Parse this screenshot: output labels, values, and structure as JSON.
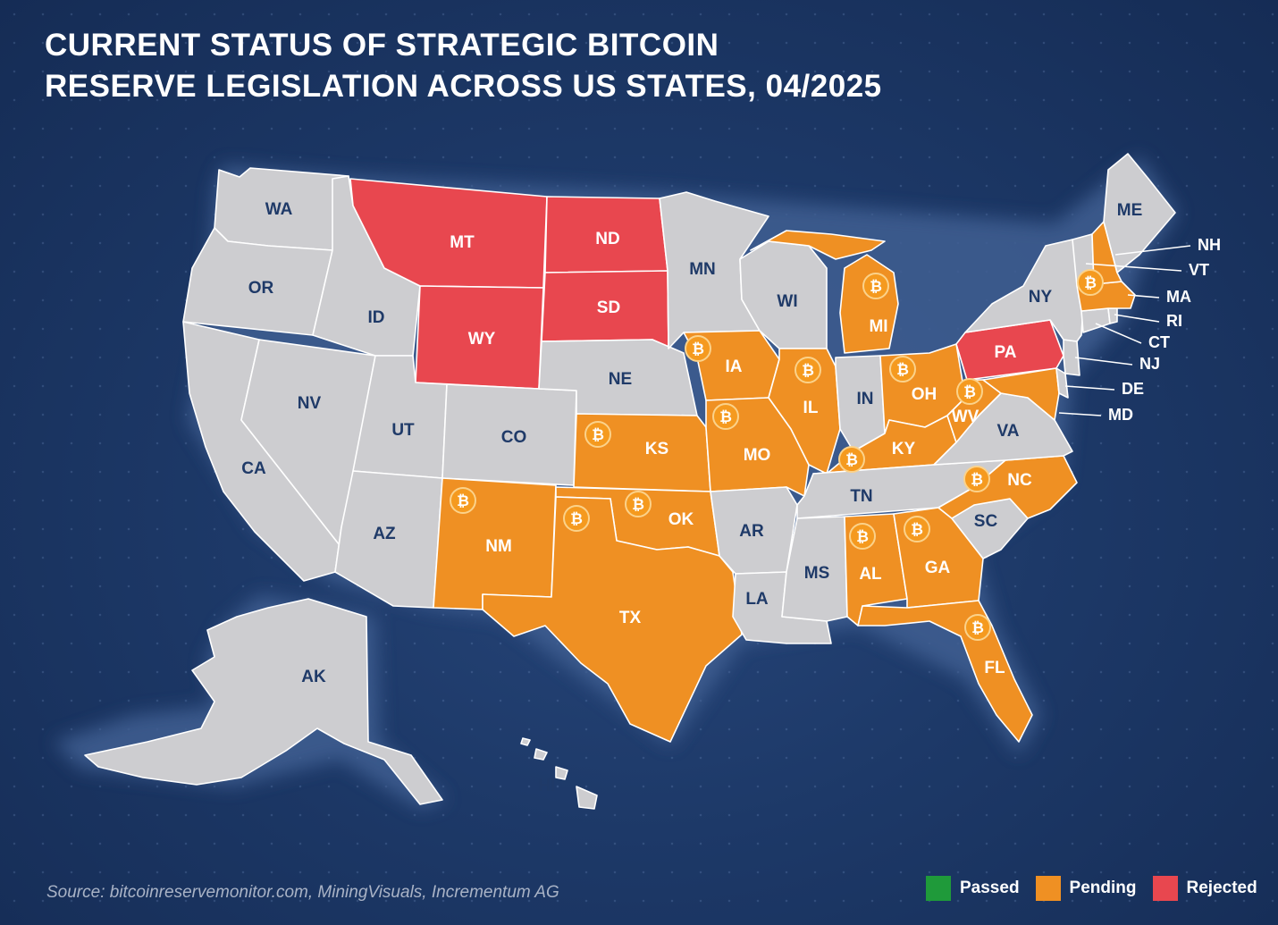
{
  "title": {
    "line1": "CURRENT STATUS OF STRATEGIC BITCOIN",
    "line2": "RESERVE LEGISLATION ACROSS US STATES, 04/2025"
  },
  "source": "Source: bitcoinreservemonitor.com, MiningVisuals, Incrementum AG",
  "colors": {
    "passed": "#1f9a3a",
    "pending": "#ef9023",
    "rejected": "#e8474f",
    "no_legislation": "#cdcdd0",
    "background": "#1d3968"
  },
  "coin_icon": "bitcoin-icon",
  "coin_symbol": "₿",
  "legend": [
    {
      "key": "passed",
      "label": "Passed"
    },
    {
      "key": "pending",
      "label": "Pending"
    },
    {
      "key": "rejected",
      "label": "Rejected"
    }
  ],
  "states": {
    "WA": "none",
    "OR": "none",
    "CA": "none",
    "NV": "none",
    "ID": "none",
    "UT": "none",
    "AZ": "none",
    "CO": "none",
    "NE": "none",
    "MN": "none",
    "WI": "none",
    "IN": "none",
    "AR": "none",
    "LA": "none",
    "MS": "none",
    "TN": "none",
    "SC": "none",
    "VA": "none",
    "NY": "none",
    "ME": "none",
    "NJ": "none",
    "DE": "none",
    "CT": "none",
    "RI": "none",
    "VT": "none",
    "AK": "none",
    "HI": "none",
    "MT": "rejected",
    "ND": "rejected",
    "SD": "rejected",
    "WY": "rejected",
    "PA": "rejected",
    "NM": "pending",
    "TX": "pending",
    "OK": "pending",
    "KS": "pending",
    "MO": "pending",
    "IA": "pending",
    "IL": "pending",
    "MI": "pending",
    "OH": "pending",
    "KY": "pending",
    "WV": "pending",
    "NC": "pending",
    "AL": "pending",
    "GA": "pending",
    "FL": "pending",
    "MD": "pending",
    "MA": "pending",
    "NH": "pending"
  },
  "callout_labels": [
    "NH",
    "VT",
    "MA",
    "RI",
    "CT",
    "NJ",
    "DE",
    "MD"
  ]
}
